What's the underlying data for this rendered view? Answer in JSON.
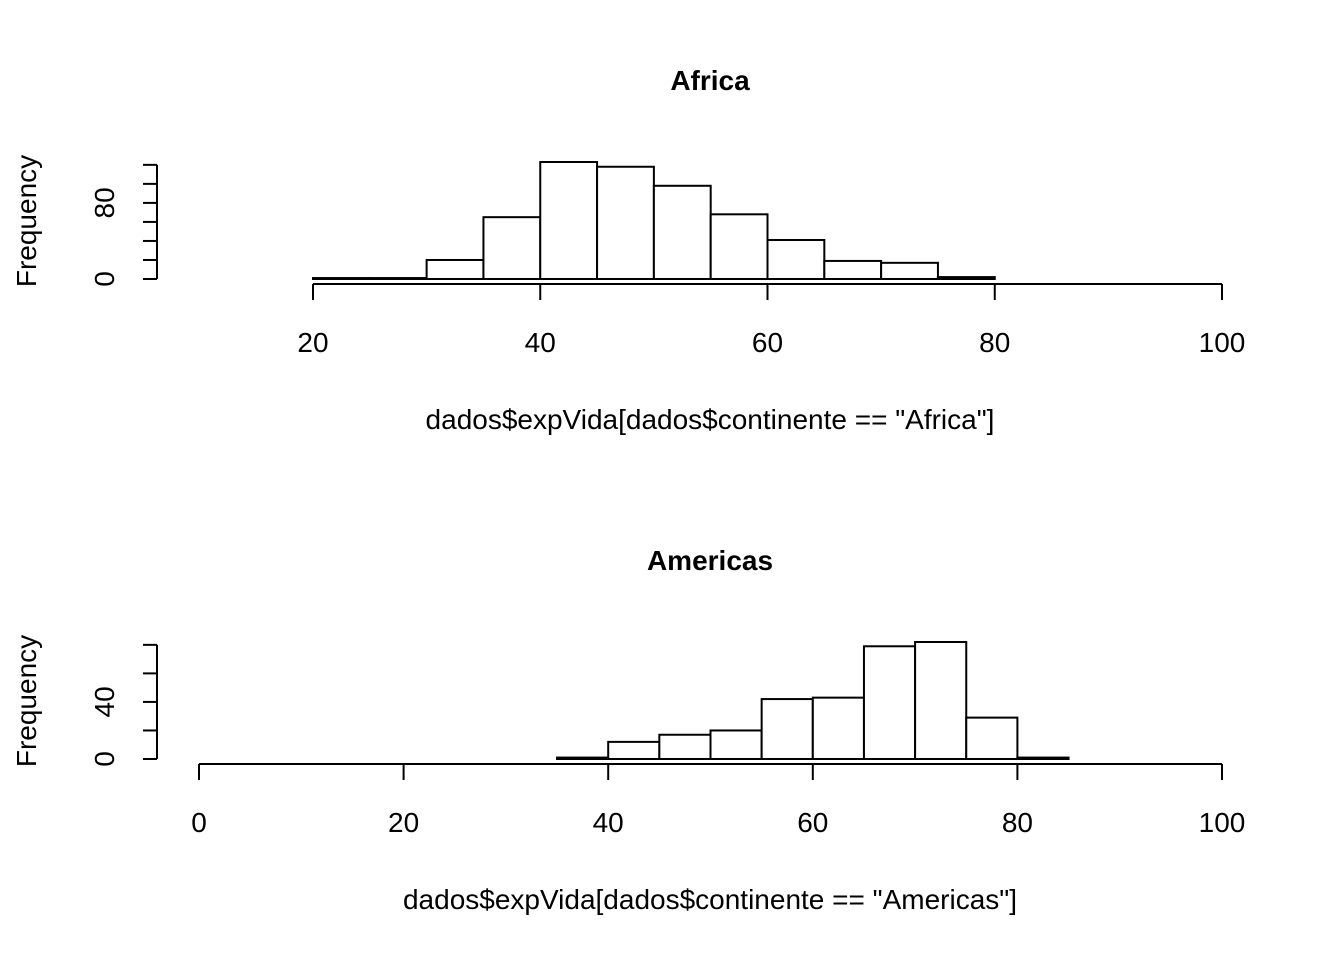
{
  "chart_data": [
    {
      "type": "bar",
      "title": "Africa",
      "xlabel": "dados$expVida[dados$continente == \"Africa\"]",
      "ylabel": "Frequency",
      "bin_edges": [
        20,
        25,
        30,
        35,
        40,
        45,
        50,
        55,
        60,
        65,
        70,
        75,
        80
      ],
      "values": [
        1,
        1,
        20,
        65,
        123,
        118,
        98,
        68,
        41,
        19,
        17,
        2
      ],
      "xlim": [
        20,
        100
      ],
      "x_ticks": [
        20,
        40,
        60,
        80,
        100
      ],
      "y_ticks": [
        0,
        20,
        40,
        60,
        80,
        100,
        120
      ],
      "y_tick_labels": [
        "0",
        "",
        "",
        "",
        "80",
        "",
        ""
      ],
      "ylim": [
        0,
        123
      ],
      "grid": false
    },
    {
      "type": "bar",
      "title": "Americas",
      "xlabel": "dados$expVida[dados$continente == \"Americas\"]",
      "ylabel": "Frequency",
      "bin_edges": [
        35,
        40,
        45,
        50,
        55,
        60,
        65,
        70,
        75,
        80,
        85
      ],
      "values": [
        1,
        12,
        17,
        20,
        42,
        43,
        79,
        82,
        29,
        1
      ],
      "xlim": [
        0,
        100
      ],
      "x_ticks": [
        0,
        20,
        40,
        60,
        80,
        100
      ],
      "y_ticks": [
        0,
        20,
        40,
        60,
        80
      ],
      "y_tick_labels": [
        "0",
        "",
        "40",
        "",
        ""
      ],
      "ylim": [
        0,
        82
      ],
      "grid": false
    }
  ]
}
